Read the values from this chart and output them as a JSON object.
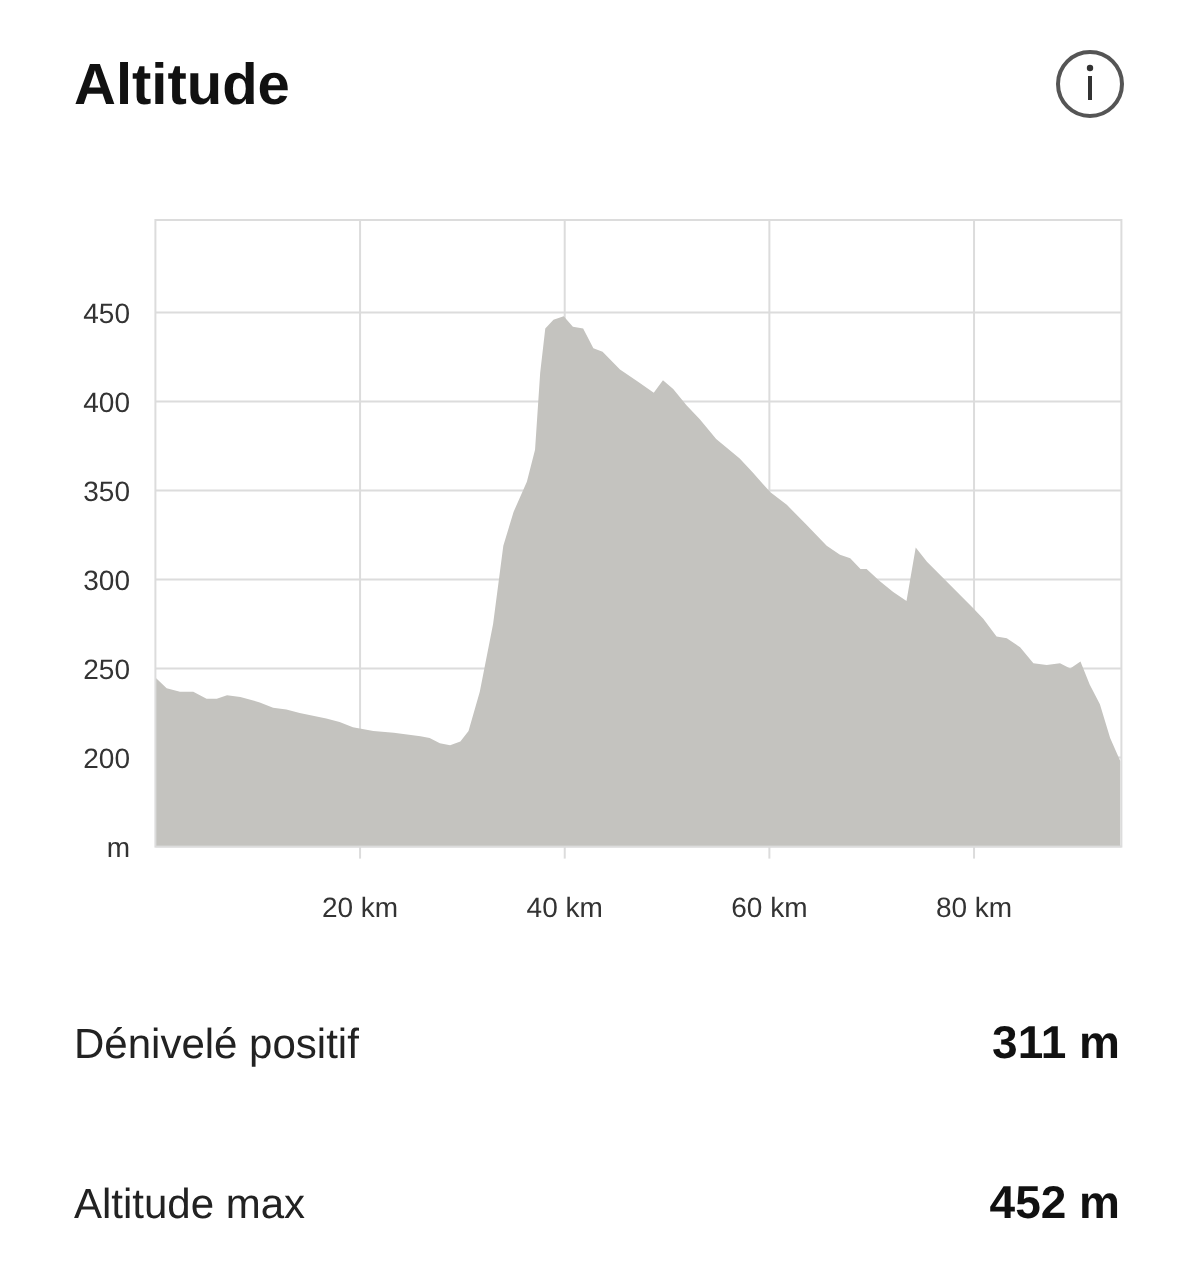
{
  "chart_data": {
    "type": "area",
    "title": "Altitude",
    "color": "#c4c3bf",
    "x": [
      0,
      1.1,
      2.4,
      3.7,
      5.0,
      6.0,
      7.0,
      8.3,
      10.2,
      11.5,
      12.8,
      14.1,
      16.7,
      18.0,
      19.3,
      21.3,
      23.3,
      25.9,
      26.8,
      27.8,
      28.8,
      29.8,
      30.6,
      31.7,
      33.0,
      34.0,
      35.0,
      36.3,
      37.1,
      37.6,
      38.1,
      38.9,
      39.9,
      40.8,
      41.8,
      42.8,
      43.7,
      45.4,
      47.2,
      48.7,
      49.6,
      50.6,
      51.9,
      53.2,
      54.8,
      57.1,
      58.4,
      60.1,
      61.7,
      63.6,
      65.6,
      66.9,
      67.9,
      68.9,
      69.5,
      70.8,
      72.1,
      73.4,
      74.3,
      75.4,
      77.3,
      79.9,
      80.9,
      82.2,
      83.2,
      84.5,
      85.8,
      87.1,
      88.4,
      89.4,
      90.4,
      91.3,
      92.3,
      93.3,
      94.3
    ],
    "values": [
      245,
      239,
      237,
      237,
      233,
      233,
      235,
      234,
      231,
      228,
      227,
      225,
      222,
      220,
      217,
      215,
      214,
      212,
      211,
      208,
      207,
      209,
      215,
      237,
      275,
      319,
      338,
      355,
      373,
      416,
      441,
      446,
      448,
      442,
      441,
      430,
      428,
      418,
      411,
      405,
      412,
      407,
      398,
      390,
      379,
      368,
      360,
      349,
      342,
      331,
      319,
      314,
      312,
      306,
      306,
      299,
      293,
      288,
      318,
      310,
      299,
      284,
      278,
      268,
      267,
      262,
      253,
      252,
      253,
      250,
      254,
      241,
      230,
      211,
      198
    ],
    "xlim": [
      0,
      94.4
    ],
    "ylim": [
      150,
      502
    ],
    "xticks": [
      {
        "value": 20,
        "label": "20 km"
      },
      {
        "value": 40,
        "label": "40 km"
      },
      {
        "value": 60,
        "label": "60 km"
      },
      {
        "value": 80,
        "label": "80 km"
      }
    ],
    "yticks": [
      {
        "value": 150,
        "label": "m"
      },
      200,
      250,
      300,
      350,
      400,
      450
    ],
    "grid": true,
    "annotations": [
      "Dénivelé positif",
      "311 m",
      "Altitude max",
      "452 m"
    ]
  }
}
